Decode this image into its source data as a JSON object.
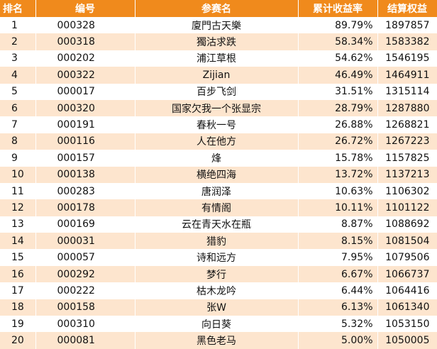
{
  "columns": [
    "排名",
    "编号",
    "参赛名",
    "累计收益率",
    "结算权益"
  ],
  "rows": [
    {
      "rank": "1",
      "id": "000328",
      "name": "廈門古天樂",
      "return": "89.79%",
      "equity": "1897857"
    },
    {
      "rank": "2",
      "id": "000318",
      "name": "獨沽求跌",
      "return": "58.34%",
      "equity": "1583382"
    },
    {
      "rank": "3",
      "id": "000202",
      "name": "浦江草根",
      "return": "54.62%",
      "equity": "1546195"
    },
    {
      "rank": "4",
      "id": "000322",
      "name": "Zijian",
      "return": "46.49%",
      "equity": "1464911"
    },
    {
      "rank": "5",
      "id": "000017",
      "name": "百步飞剑",
      "return": "31.51%",
      "equity": "1315114"
    },
    {
      "rank": "6",
      "id": "000320",
      "name": "国家欠我一个张显宗",
      "return": "28.79%",
      "equity": "1287880"
    },
    {
      "rank": "7",
      "id": "000191",
      "name": "春秋一号",
      "return": "26.88%",
      "equity": "1268821"
    },
    {
      "rank": "8",
      "id": "000116",
      "name": "人在他方",
      "return": "26.72%",
      "equity": "1267223"
    },
    {
      "rank": "9",
      "id": "000157",
      "name": "烽",
      "return": "15.78%",
      "equity": "1157825"
    },
    {
      "rank": "10",
      "id": "000138",
      "name": "横绝四海",
      "return": "13.72%",
      "equity": "1137213"
    },
    {
      "rank": "11",
      "id": "000283",
      "name": "唐润泽",
      "return": "10.63%",
      "equity": "1106302"
    },
    {
      "rank": "12",
      "id": "000178",
      "name": "有情阁",
      "return": "10.11%",
      "equity": "1101122"
    },
    {
      "rank": "13",
      "id": "000169",
      "name": "云在青天水在瓶",
      "return": "8.87%",
      "equity": "1088692"
    },
    {
      "rank": "14",
      "id": "000031",
      "name": "猎豹",
      "return": "8.15%",
      "equity": "1081504"
    },
    {
      "rank": "15",
      "id": "000057",
      "name": "诗和远方",
      "return": "7.95%",
      "equity": "1079506"
    },
    {
      "rank": "16",
      "id": "000292",
      "name": "梦行",
      "return": "6.67%",
      "equity": "1066737"
    },
    {
      "rank": "17",
      "id": "000222",
      "name": "枯木龙吟",
      "return": "6.44%",
      "equity": "1064416"
    },
    {
      "rank": "18",
      "id": "000158",
      "name": "张W",
      "return": "6.13%",
      "equity": "1061340"
    },
    {
      "rank": "19",
      "id": "000310",
      "name": "向日葵",
      "return": "5.32%",
      "equity": "1053150"
    },
    {
      "rank": "20",
      "id": "000081",
      "name": "黑色老马",
      "return": "5.00%",
      "equity": "1050005"
    }
  ],
  "colors": {
    "header_bg": "#f08a1c",
    "header_text": "#ffffff",
    "stripe": "#fde5ce"
  }
}
